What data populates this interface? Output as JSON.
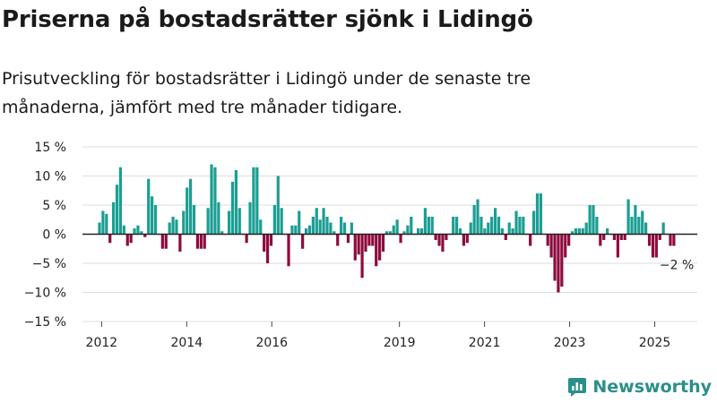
{
  "title": "Priserna på bostadsrätter sjönk i Lidingö",
  "subtitle": "Prisutveckling för bostadsrätter i Lidingö under de senaste tre månaderna, jämfört med tre månader tidigare.",
  "brand": {
    "name": "Newsworthy",
    "logo_icon": "bar-chart-logo-icon",
    "color": "#2a8f8a"
  },
  "chart_data": {
    "type": "bar",
    "ylim": [
      -15,
      15
    ],
    "y_ticks": [
      15,
      10,
      5,
      0,
      -5,
      -10,
      -15
    ],
    "y_tick_labels": [
      "15 %",
      "10 %",
      "5 %",
      "0 %",
      "−5 %",
      "−10 %",
      "−15 %"
    ],
    "x_range": [
      2011.55,
      2026.0
    ],
    "x_ticks": [
      2012,
      2014,
      2016,
      2019,
      2021,
      2023,
      2025
    ],
    "x_tick_labels": [
      "2012",
      "2014",
      "2016",
      "2019",
      "2021",
      "2023",
      "2025"
    ],
    "grid": true,
    "colors": {
      "positive": "#1b9e93",
      "negative": "#8e0a3e",
      "grid": "#dddddd"
    },
    "last_value_label": "−2 %",
    "values": [
      2,
      4,
      3.5,
      -1.5,
      5.5,
      8.5,
      11.5,
      1.5,
      -2,
      -1.5,
      1,
      1.5,
      0.5,
      -0.5,
      9.5,
      6.5,
      5,
      0,
      -2.5,
      -2.5,
      2,
      3,
      2.5,
      -3,
      4,
      8,
      9.5,
      5,
      -2.5,
      -2.5,
      -2.5,
      4.5,
      12,
      11.5,
      5.5,
      0.5,
      0,
      4,
      9,
      11,
      4.5,
      0,
      -1.5,
      5.5,
      11.5,
      11.5,
      2.5,
      -3,
      -5,
      -2,
      5,
      10,
      4.5,
      0,
      -5.5,
      1.5,
      1.5,
      4,
      -2.5,
      1,
      1.5,
      3,
      4.5,
      2.5,
      4.5,
      3,
      2,
      0.5,
      -2,
      3,
      2,
      -1.5,
      2,
      -4.5,
      -3.5,
      -7.5,
      -3,
      -2,
      -2,
      -5.5,
      -4.5,
      -3,
      0.5,
      0.5,
      1.5,
      2.5,
      -1.5,
      0.5,
      1.5,
      3,
      0,
      1,
      1,
      4.5,
      3,
      3,
      -1,
      -2,
      -3,
      -1,
      0,
      3,
      3,
      1,
      -2,
      -1.5,
      2,
      5,
      6,
      3,
      1,
      2,
      3,
      4.5,
      3,
      1,
      -1,
      2,
      1,
      4,
      3,
      3,
      0,
      -2,
      4,
      7,
      7,
      0,
      -2,
      -4,
      -8,
      -10,
      -9,
      -4,
      -2,
      0.5,
      1,
      1,
      1,
      2,
      5,
      5,
      3,
      -2,
      -1,
      1,
      0,
      -1,
      -4,
      -1,
      -1,
      6,
      3,
      5,
      3,
      4,
      2,
      -2,
      -4,
      -4,
      -1,
      2,
      0,
      -2,
      -2
    ]
  }
}
